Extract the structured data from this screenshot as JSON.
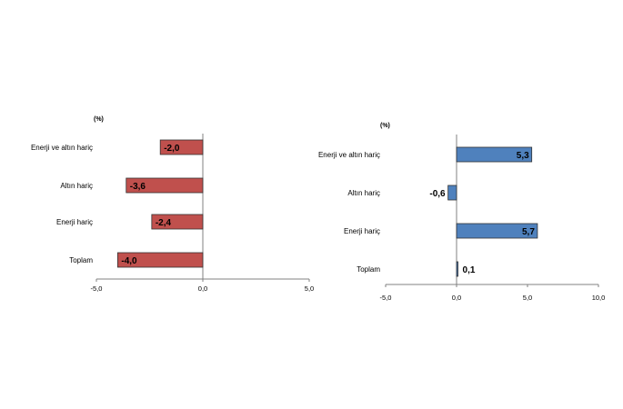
{
  "chart_data": [
    {
      "type": "bar",
      "orientation": "horizontal",
      "unit_label": "(%)",
      "categories": [
        "Enerji ve altın hariç",
        "Altın hariç",
        "Enerji hariç",
        "Toplam"
      ],
      "values": [
        -2.0,
        -3.6,
        -2.4,
        -4.0
      ],
      "value_labels": [
        "-2,0",
        "-3,6",
        "-2,4",
        "-4,0"
      ],
      "xlim": [
        -5.0,
        5.0
      ],
      "ticks": [
        -5.0,
        0.0,
        5.0
      ],
      "tick_labels": [
        "-5,0",
        "0,0",
        "5,0"
      ],
      "bar_color": "#c0504d",
      "grid": false,
      "legend": "none"
    },
    {
      "type": "bar",
      "orientation": "horizontal",
      "unit_label": "(%)",
      "categories": [
        "Enerji ve altın hariç",
        "Altın hariç",
        "Enerji hariç",
        "Toplam"
      ],
      "values": [
        5.3,
        -0.6,
        5.7,
        0.1
      ],
      "value_labels": [
        "5,3",
        "-0,6",
        "5,7",
        "0,1"
      ],
      "xlim": [
        -5.0,
        10.0
      ],
      "ticks": [
        -5.0,
        0.0,
        5.0,
        10.0
      ],
      "tick_labels": [
        "-5,0",
        "0,0",
        "5,0",
        "10,0"
      ],
      "bar_color": "#4f81bd",
      "grid": false,
      "legend": "none"
    }
  ]
}
